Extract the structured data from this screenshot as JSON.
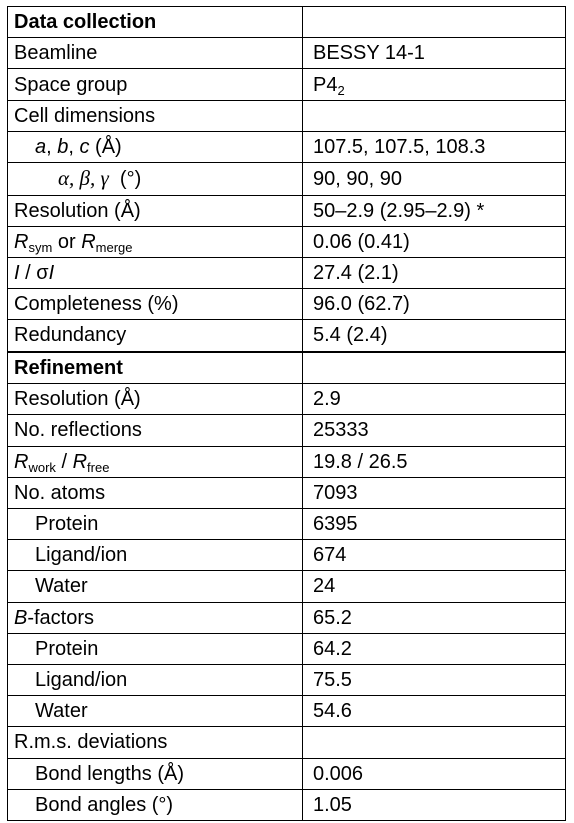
{
  "sections": {
    "data_collection": "Data collection",
    "refinement": "Refinement"
  },
  "rows": {
    "beamline": {
      "label": "Beamline",
      "value": "BESSY 14-1"
    },
    "space_group": {
      "label": "Space group",
      "value_main": "P4",
      "value_sub": "2"
    },
    "cell_dimensions": {
      "label": "Cell dimensions"
    },
    "abc": {
      "a": "a",
      "sep1": ", ",
      "b": "b",
      "sep2": ", ",
      "c": "c",
      "unit": " (Å)",
      "value": "107.5, 107.5, 108.3"
    },
    "angles": {
      "alpha": "α",
      "beta": "β",
      "gamma": "γ",
      "sep": ", ",
      "unit": "(°)",
      "value": "90, 90, 90"
    },
    "resolution": {
      "label": "Resolution (Å)",
      "value": "50–2.9 (2.95–2.9) *"
    },
    "rsym": {
      "r1": "R",
      "sub1": "sym",
      "mid": " or ",
      "r2": "R",
      "sub2": "merge",
      "value": "0.06 (0.41)"
    },
    "i_sigma": {
      "i1": "I",
      "mid": " / σ",
      "i2": "I",
      "value": "27.4 (2.1)"
    },
    "completeness": {
      "label": "Completeness (%)",
      "value": "96.0 (62.7)"
    },
    "redundancy": {
      "label": "Redundancy",
      "value": "5.4 (2.4)"
    },
    "ref_resolution": {
      "label": "Resolution (Å)",
      "value": "2.9"
    },
    "reflections": {
      "label": "No. reflections",
      "value": "25333"
    },
    "rwork": {
      "r1": "R",
      "sub1": "work",
      "mid": " / ",
      "r2": "R",
      "sub2": "free",
      "value": "19.8 / 26.5"
    },
    "atoms": {
      "label": "No. atoms",
      "value": "7093"
    },
    "atoms_protein": {
      "label": "Protein",
      "value": "6395"
    },
    "atoms_ligand": {
      "label": "Ligand/ion",
      "value": "674"
    },
    "atoms_water": {
      "label": "Water",
      "value": "24"
    },
    "bfactors": {
      "b": "B",
      "rest": "-factors",
      "value": "65.2"
    },
    "b_protein": {
      "label": "Protein",
      "value": "64.2"
    },
    "b_ligand": {
      "label": "Ligand/ion",
      "value": "75.5"
    },
    "b_water": {
      "label": "Water",
      "value": "54.6"
    },
    "rms": {
      "label": "R.m.s. deviations"
    },
    "bond_lengths": {
      "label": "Bond lengths (Å)",
      "value": "0.006"
    },
    "bond_angles": {
      "label": "Bond angles (°)",
      "value": "1.05"
    }
  }
}
